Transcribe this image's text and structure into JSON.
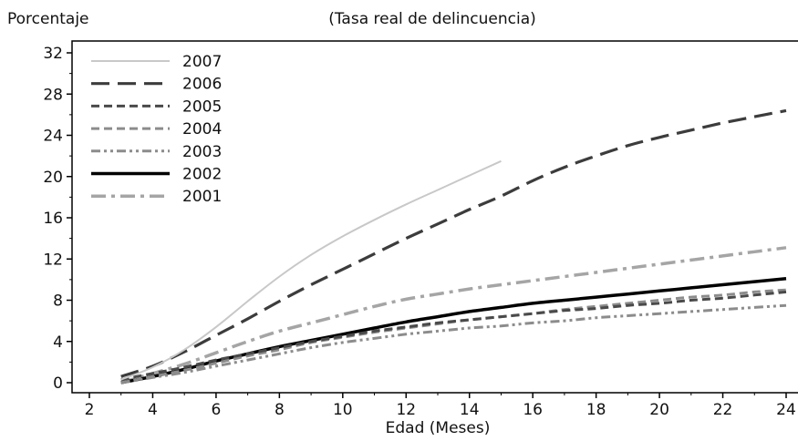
{
  "chart_data": {
    "type": "line",
    "title": "(Tasa real de delincuencia)",
    "ylabel": "Porcentaje",
    "xlabel": "Edad (Meses)",
    "xlim": [
      2,
      24
    ],
    "ylim": [
      0,
      32
    ],
    "xticks": [
      2,
      4,
      6,
      8,
      10,
      12,
      14,
      16,
      18,
      20,
      22,
      24
    ],
    "yticks": [
      0,
      4,
      8,
      12,
      16,
      20,
      24,
      28,
      32
    ],
    "grid": false,
    "legend_position": "top-left",
    "series": [
      {
        "name": "2007",
        "color": "#c8c8c8",
        "dash": "solid",
        "width": 2,
        "x": [
          3,
          4,
          5,
          6,
          7,
          8,
          9,
          10,
          11,
          12,
          13,
          14,
          15
        ],
        "y": [
          0.3,
          1.5,
          3.2,
          5.4,
          7.9,
          10.3,
          12.4,
          14.2,
          15.8,
          17.3,
          18.7,
          20.1,
          21.5
        ]
      },
      {
        "name": "2006",
        "color": "#3c3c3c",
        "dash": "long",
        "width": 3.2,
        "x": [
          3,
          4,
          5,
          6,
          7,
          8,
          9,
          10,
          11,
          12,
          13,
          14,
          15,
          16,
          17,
          18,
          19,
          20,
          21,
          22,
          23,
          24
        ],
        "y": [
          0.6,
          1.6,
          3.0,
          4.6,
          6.2,
          7.9,
          9.5,
          11.0,
          12.5,
          14.0,
          15.4,
          16.8,
          18.1,
          19.6,
          20.9,
          22.0,
          23.0,
          23.8,
          24.5,
          25.2,
          25.8,
          26.4
        ]
      },
      {
        "name": "2005",
        "color": "#4a4a4a",
        "dash": "short",
        "width": 3,
        "x": [
          3,
          4,
          5,
          6,
          7,
          8,
          9,
          10,
          11,
          12,
          13,
          14,
          15,
          16,
          17,
          18,
          19,
          20,
          21,
          22,
          23,
          24
        ],
        "y": [
          0.3,
          0.9,
          1.5,
          2.2,
          2.8,
          3.4,
          4.0,
          4.5,
          5.0,
          5.4,
          5.8,
          6.1,
          6.4,
          6.7,
          7.0,
          7.2,
          7.5,
          7.7,
          8.0,
          8.2,
          8.5,
          8.8
        ]
      },
      {
        "name": "2004",
        "color": "#8c8c8c",
        "dash": "short",
        "width": 3,
        "x": [
          3,
          4,
          5,
          6,
          7,
          8,
          9,
          10,
          11,
          12,
          13,
          14,
          15,
          16,
          17,
          18,
          19,
          20,
          21,
          22,
          23,
          24
        ],
        "y": [
          0.0,
          0.6,
          1.2,
          1.9,
          2.6,
          3.2,
          3.9,
          4.4,
          4.9,
          5.3,
          5.7,
          6.1,
          6.4,
          6.7,
          7.1,
          7.4,
          7.7,
          8.0,
          8.3,
          8.5,
          8.8,
          9.0
        ]
      },
      {
        "name": "2003",
        "color": "#8c8c8c",
        "dash": "dashdotdot",
        "width": 3,
        "x": [
          3,
          4,
          5,
          6,
          7,
          8,
          9,
          10,
          11,
          12,
          13,
          14,
          15,
          16,
          17,
          18,
          19,
          20,
          21,
          22,
          23,
          24
        ],
        "y": [
          0.0,
          0.5,
          1.0,
          1.6,
          2.2,
          2.8,
          3.4,
          3.9,
          4.3,
          4.7,
          5.0,
          5.3,
          5.5,
          5.8,
          6.0,
          6.3,
          6.5,
          6.7,
          6.9,
          7.1,
          7.3,
          7.5
        ]
      },
      {
        "name": "2002",
        "color": "#000000",
        "dash": "solid",
        "width": 3.5,
        "x": [
          3,
          4,
          5,
          6,
          7,
          8,
          9,
          10,
          11,
          12,
          13,
          14,
          15,
          16,
          17,
          18,
          19,
          20,
          21,
          22,
          23,
          24
        ],
        "y": [
          0.0,
          0.6,
          1.3,
          2.1,
          2.8,
          3.5,
          4.1,
          4.7,
          5.3,
          5.9,
          6.4,
          6.9,
          7.3,
          7.7,
          8.0,
          8.3,
          8.6,
          8.9,
          9.2,
          9.5,
          9.8,
          10.1
        ]
      },
      {
        "name": "2001",
        "color": "#a5a5a5",
        "dash": "dashdot",
        "width": 3.5,
        "x": [
          3,
          4,
          5,
          6,
          7,
          8,
          9,
          10,
          11,
          12,
          13,
          14,
          15,
          16,
          17,
          18,
          19,
          20,
          21,
          22,
          23,
          24
        ],
        "y": [
          0.0,
          0.9,
          1.8,
          2.9,
          4.0,
          5.0,
          5.8,
          6.6,
          7.4,
          8.1,
          8.6,
          9.1,
          9.5,
          9.9,
          10.3,
          10.7,
          11.1,
          11.5,
          11.9,
          12.3,
          12.7,
          13.1
        ]
      }
    ]
  }
}
